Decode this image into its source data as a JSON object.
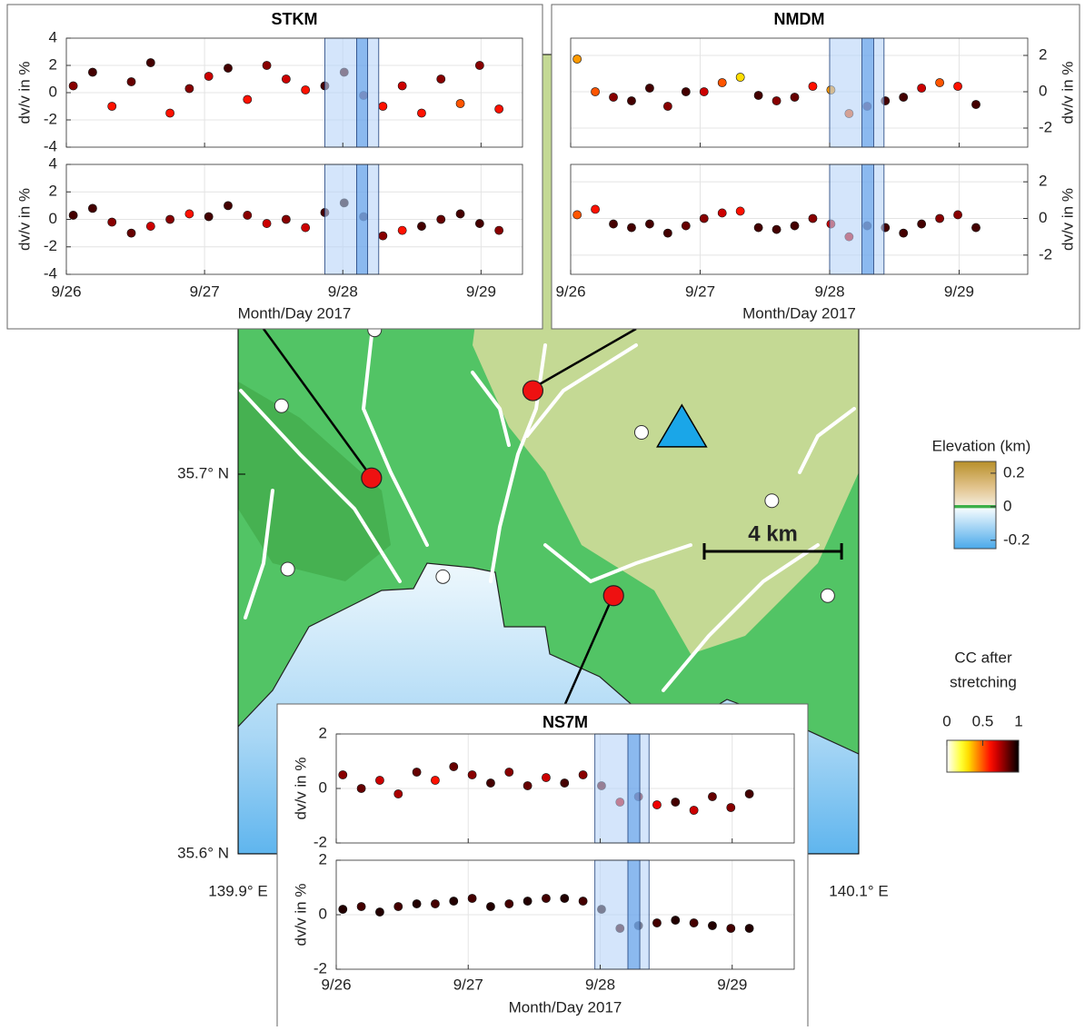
{
  "map": {
    "xlim": [
      139.9,
      140.1
    ],
    "ylim": [
      35.6,
      35.8
    ],
    "xticks": [
      {
        "value": 139.9,
        "label": "139.9° E"
      },
      {
        "value": 140.1,
        "label": "140.1° E"
      }
    ],
    "yticks": [
      {
        "value": 35.6,
        "label": "35.6° N"
      },
      {
        "value": 35.7,
        "label": "35.7° N"
      }
    ],
    "red_sites": [
      {
        "lon": 139.943,
        "lat": 35.699
      },
      {
        "lon": 139.995,
        "lat": 35.722
      },
      {
        "lon": 140.021,
        "lat": 35.668
      }
    ],
    "red_color": "#ee1111",
    "white_sites": [
      {
        "lon": 139.914,
        "lat": 35.718
      },
      {
        "lon": 139.944,
        "lat": 35.738
      },
      {
        "lon": 140.03,
        "lat": 35.711
      },
      {
        "lon": 140.072,
        "lat": 35.693
      },
      {
        "lon": 140.09,
        "lat": 35.668
      },
      {
        "lon": 139.966,
        "lat": 35.673
      },
      {
        "lon": 139.916,
        "lat": 35.675
      }
    ],
    "triangle": {
      "lon": 140.043,
      "lat": 35.712,
      "color": "#1aa6e8"
    },
    "scale_bar": {
      "label": "4 km",
      "km": 4
    },
    "elevation_colorbar": {
      "title": "Elevation (km)",
      "clim": [
        -0.25,
        0.27
      ],
      "ticks": [
        0.2,
        0,
        -0.2
      ]
    },
    "cc_colorbar": {
      "title": [
        "CC after",
        "stretching"
      ],
      "clim": [
        0,
        1
      ],
      "ticks": [
        0,
        0.5,
        1
      ]
    }
  },
  "chart_data": [
    {
      "type": "scatter",
      "title": "STKM",
      "xlabel": "Month/Day 2017",
      "yaxis": "left",
      "grid": true,
      "xlim": [
        0,
        3.3
      ],
      "xticks": [
        {
          "value": 0,
          "label": "9/26"
        },
        {
          "value": 1,
          "label": "9/27"
        },
        {
          "value": 2,
          "label": "9/28"
        },
        {
          "value": 3,
          "label": "9/29"
        }
      ],
      "x": [
        0.05,
        0.19,
        0.33,
        0.47,
        0.61,
        0.75,
        0.89,
        1.03,
        1.17,
        1.31,
        1.45,
        1.59,
        1.73,
        1.87,
        2.01,
        2.15,
        2.29,
        2.43,
        2.57,
        2.71,
        2.85,
        2.99,
        3.13
      ],
      "spans": [
        {
          "x": [
            1.87,
            2.26
          ],
          "color": "#b8d4f8"
        },
        {
          "x": [
            2.1,
            2.18
          ],
          "color": "#5a9be8"
        }
      ],
      "panels": [
        {
          "ylabel": "dv/v in %",
          "ylim": [
            -4,
            4
          ],
          "yticks": [
            -4,
            -2,
            0,
            2,
            4
          ],
          "values": [
            0.5,
            1.5,
            -1,
            0.8,
            2.2,
            -1.5,
            0.3,
            1.2,
            1.8,
            -0.5,
            2,
            1,
            0.2,
            0.5,
            1.5,
            -0.2,
            -1,
            0.5,
            -1.5,
            1,
            -0.8,
            2,
            -1.2
          ],
          "cc": [
            0.8,
            0.9,
            0.6,
            0.85,
            0.9,
            0.6,
            0.8,
            0.7,
            0.9,
            0.6,
            0.8,
            0.7,
            0.6,
            0.9,
            0.9,
            0.8,
            0.6,
            0.7,
            0.6,
            0.8,
            0.5,
            0.8,
            0.6
          ]
        },
        {
          "ylabel": "dv/v in %",
          "ylim": [
            -4,
            4
          ],
          "yticks": [
            -4,
            -2,
            0,
            2,
            4
          ],
          "values": [
            0.3,
            0.8,
            -0.2,
            -1,
            -0.5,
            0,
            0.4,
            0.2,
            1,
            0.3,
            -0.3,
            0,
            -0.6,
            0.5,
            1.2,
            0.2,
            -1.2,
            -0.8,
            -0.5,
            0,
            0.4,
            -0.3,
            -0.8
          ],
          "cc": [
            0.9,
            0.9,
            0.8,
            0.85,
            0.7,
            0.8,
            0.6,
            0.9,
            0.9,
            0.8,
            0.7,
            0.8,
            0.7,
            0.9,
            0.95,
            0.9,
            0.8,
            0.6,
            0.9,
            0.85,
            0.9,
            0.9,
            0.8
          ]
        }
      ]
    },
    {
      "type": "scatter",
      "title": "NMDM",
      "xlabel": "Month/Day 2017",
      "yaxis": "right",
      "grid": true,
      "xlim": [
        0,
        3.53
      ],
      "xticks": [
        {
          "value": 0,
          "label": "9/26"
        },
        {
          "value": 1,
          "label": "9/27"
        },
        {
          "value": 2,
          "label": "9/28"
        },
        {
          "value": 3,
          "label": "9/29"
        }
      ],
      "x": [
        0.05,
        0.19,
        0.33,
        0.47,
        0.61,
        0.75,
        0.89,
        1.03,
        1.17,
        1.31,
        1.45,
        1.59,
        1.73,
        1.87,
        2.01,
        2.15,
        2.29,
        2.43,
        2.57,
        2.71,
        2.85,
        2.99,
        3.13
      ],
      "spans": [
        {
          "x": [
            2.0,
            2.42
          ],
          "color": "#b8d4f8"
        },
        {
          "x": [
            2.25,
            2.34
          ],
          "color": "#5a9be8"
        }
      ],
      "panels": [
        {
          "ylabel": "dv/v in %",
          "ylim": [
            -3.05,
            2.95
          ],
          "yticks": [
            -2,
            0,
            2
          ],
          "values": [
            1.8,
            0,
            -0.3,
            -0.5,
            0.2,
            -0.8,
            0,
            0,
            0.5,
            0.8,
            -0.2,
            -0.5,
            -0.3,
            0.3,
            0.1,
            -1.2,
            -0.8,
            -0.5,
            -0.3,
            0.2,
            0.5,
            0.3,
            -0.7
          ],
          "cc": [
            0.4,
            0.5,
            0.8,
            0.9,
            0.9,
            0.8,
            0.9,
            0.7,
            0.5,
            0.3,
            0.9,
            0.8,
            0.85,
            0.6,
            0.4,
            0.5,
            0.8,
            0.9,
            0.9,
            0.7,
            0.5,
            0.6,
            0.9
          ]
        },
        {
          "ylabel": "dv/v in %",
          "ylim": [
            -3.05,
            2.95
          ],
          "yticks": [
            -2,
            0,
            2
          ],
          "values": [
            0.2,
            0.5,
            -0.3,
            -0.5,
            -0.3,
            -0.8,
            -0.4,
            0,
            0.3,
            0.4,
            -0.5,
            -0.6,
            -0.4,
            0,
            -0.3,
            -1,
            -0.4,
            -0.5,
            -0.8,
            -0.3,
            0,
            0.2,
            -0.5
          ],
          "cc": [
            0.5,
            0.6,
            0.9,
            0.9,
            0.9,
            0.9,
            0.85,
            0.8,
            0.7,
            0.6,
            0.9,
            0.9,
            0.9,
            0.8,
            0.7,
            0.7,
            0.9,
            0.9,
            0.9,
            0.9,
            0.8,
            0.8,
            0.9
          ]
        }
      ]
    },
    {
      "type": "scatter",
      "title": "NS7M",
      "xlabel": "Month/Day 2017",
      "yaxis": "left",
      "grid": true,
      "xlim": [
        0,
        3.47
      ],
      "xticks": [
        {
          "value": 0,
          "label": "9/26"
        },
        {
          "value": 1,
          "label": "9/27"
        },
        {
          "value": 2,
          "label": "9/28"
        },
        {
          "value": 3,
          "label": "9/29"
        }
      ],
      "x": [
        0.05,
        0.19,
        0.33,
        0.47,
        0.61,
        0.75,
        0.89,
        1.03,
        1.17,
        1.31,
        1.45,
        1.59,
        1.73,
        1.87,
        2.01,
        2.15,
        2.29,
        2.43,
        2.57,
        2.71,
        2.85,
        2.99,
        3.13
      ],
      "spans": [
        {
          "x": [
            1.96,
            2.37
          ],
          "color": "#b8d4f8"
        },
        {
          "x": [
            2.21,
            2.3
          ],
          "color": "#5a9be8"
        }
      ],
      "panels": [
        {
          "ylabel": "dv/v in %",
          "ylim": [
            -2,
            2
          ],
          "yticks": [
            -2,
            0,
            2
          ],
          "values": [
            0.5,
            0,
            0.3,
            -0.2,
            0.6,
            0.3,
            0.8,
            0.5,
            0.2,
            0.6,
            0.1,
            0.4,
            0.2,
            0.5,
            0.1,
            -0.5,
            -0.3,
            -0.6,
            -0.5,
            -0.8,
            -0.3,
            -0.7,
            -0.2
          ],
          "cc": [
            0.8,
            0.85,
            0.7,
            0.75,
            0.85,
            0.6,
            0.85,
            0.8,
            0.9,
            0.8,
            0.85,
            0.7,
            0.9,
            0.8,
            0.85,
            0.7,
            0.8,
            0.65,
            0.9,
            0.7,
            0.85,
            0.8,
            0.9
          ]
        },
        {
          "ylabel": "dv/v in %",
          "ylim": [
            -2,
            2
          ],
          "yticks": [
            -2,
            0,
            2
          ],
          "values": [
            0.2,
            0.3,
            0.1,
            0.3,
            0.4,
            0.4,
            0.5,
            0.6,
            0.3,
            0.4,
            0.5,
            0.6,
            0.6,
            0.5,
            0.2,
            -0.5,
            -0.4,
            -0.3,
            -0.2,
            -0.3,
            -0.4,
            -0.5,
            -0.5
          ],
          "cc": [
            0.95,
            0.9,
            0.95,
            0.9,
            0.95,
            0.9,
            0.95,
            0.9,
            0.95,
            0.9,
            0.95,
            0.9,
            0.95,
            0.9,
            0.95,
            0.9,
            0.95,
            0.9,
            0.95,
            0.9,
            0.95,
            0.9,
            0.95
          ]
        }
      ]
    }
  ]
}
